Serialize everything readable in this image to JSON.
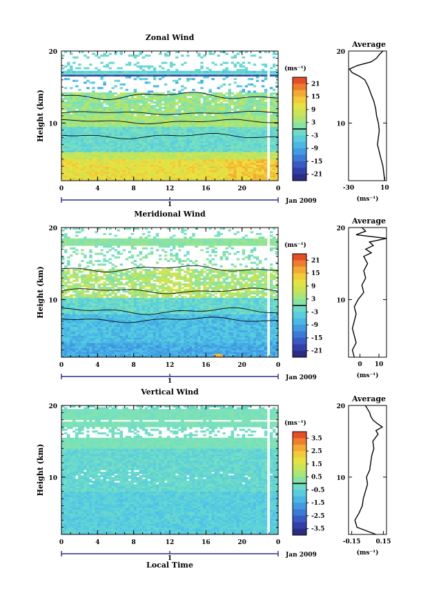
{
  "axis_label_y": "Height (km)",
  "axis_label_x": "Local Time",
  "date_label": "Jan 2009",
  "day_label": "1",
  "unit_label": "(ms⁻¹)",
  "average_title": "Average",
  "chart_data": [
    {
      "type": "heatmap",
      "title": "Zonal Wind",
      "xlabel": "",
      "ylabel": "Height (km)",
      "x_ticks": [
        "0",
        "4",
        "8",
        "12",
        "16",
        "20",
        "0"
      ],
      "y_ticks": [
        "20",
        "10"
      ],
      "xlim": [
        0,
        24
      ],
      "ylim": [
        2,
        20
      ],
      "colorbar": {
        "unit": "(ms⁻¹)",
        "ticks": [
          "21",
          "15",
          "9",
          "3",
          "-3",
          "-9",
          "-15",
          "-21"
        ],
        "range": [
          -24,
          24
        ]
      },
      "profile": {
        "title": "Average",
        "xlabel": "(ms⁻¹)",
        "x_ticks": [
          "-30",
          "10"
        ],
        "xlim": [
          -30,
          12
        ],
        "heights": [
          2,
          3,
          4,
          5,
          6,
          7,
          8,
          9,
          10,
          11,
          12,
          13,
          14,
          15,
          16,
          16.5,
          17,
          17.5,
          18,
          18.5,
          19,
          19.5,
          20
        ],
        "values": [
          10,
          9,
          8,
          6,
          4,
          2,
          3,
          4,
          3,
          1,
          0,
          -2,
          -5,
          -8,
          -12,
          -18,
          -26,
          -29,
          -20,
          -5,
          1,
          4,
          8
        ]
      }
    },
    {
      "type": "heatmap",
      "title": "Meridional Wind",
      "xlabel": "",
      "ylabel": "Height (km)",
      "x_ticks": [
        "0",
        "4",
        "8",
        "12",
        "16",
        "20",
        "0"
      ],
      "y_ticks": [
        "20",
        "10"
      ],
      "xlim": [
        0,
        24
      ],
      "ylim": [
        2,
        20
      ],
      "colorbar": {
        "unit": "(ms⁻¹)",
        "ticks": [
          "21",
          "15",
          "9",
          "3",
          "-3",
          "-9",
          "-15",
          "-21"
        ],
        "range": [
          -24,
          24
        ]
      },
      "profile": {
        "title": "Average",
        "xlabel": "(ms⁻¹)",
        "x_ticks": [
          "0",
          "10"
        ],
        "xlim": [
          -6,
          14
        ],
        "heights": [
          2,
          3,
          4,
          5,
          6,
          7,
          8,
          9,
          10,
          11,
          12,
          13,
          14,
          15,
          16,
          16.5,
          17,
          17.5,
          18,
          18.5,
          19,
          19.5,
          20
        ],
        "values": [
          -3,
          -4,
          -2,
          -3,
          -4,
          -3,
          -2,
          -3,
          -1,
          2,
          1,
          3,
          2,
          4,
          2,
          6,
          3,
          7,
          5,
          14,
          -2,
          3,
          1
        ]
      }
    },
    {
      "type": "heatmap",
      "title": "Vertical Wind",
      "xlabel": "Local Time",
      "ylabel": "Height (km)",
      "x_ticks": [
        "0",
        "4",
        "8",
        "12",
        "16",
        "20",
        "0"
      ],
      "y_ticks": [
        "20",
        "10"
      ],
      "xlim": [
        0,
        24
      ],
      "ylim": [
        2,
        20
      ],
      "colorbar": {
        "unit": "(ms⁻¹)",
        "ticks": [
          "3.5",
          "2.5",
          "1.5",
          "0.5",
          "-0.5",
          "-1.5",
          "-2.5",
          "-3.5"
        ],
        "range": [
          -4,
          4
        ]
      },
      "profile": {
        "title": "Average",
        "xlabel": "(ms⁻¹)",
        "x_ticks": [
          "-0.15",
          "0.15"
        ],
        "xlim": [
          -0.18,
          0.18
        ],
        "heights": [
          2,
          3,
          4,
          5,
          6,
          7,
          8,
          9,
          10,
          11,
          12,
          13,
          14,
          15,
          16,
          16.5,
          17,
          17.5,
          18,
          18.5,
          19,
          19.5,
          20
        ],
        "values": [
          0.08,
          -0.1,
          -0.12,
          -0.08,
          -0.05,
          -0.04,
          -0.02,
          0.0,
          -0.01,
          0.02,
          0.03,
          0.04,
          0.06,
          0.05,
          0.1,
          0.08,
          0.14,
          0.09,
          0.05,
          0.03,
          0.02,
          0.0,
          -0.02
        ]
      }
    }
  ]
}
